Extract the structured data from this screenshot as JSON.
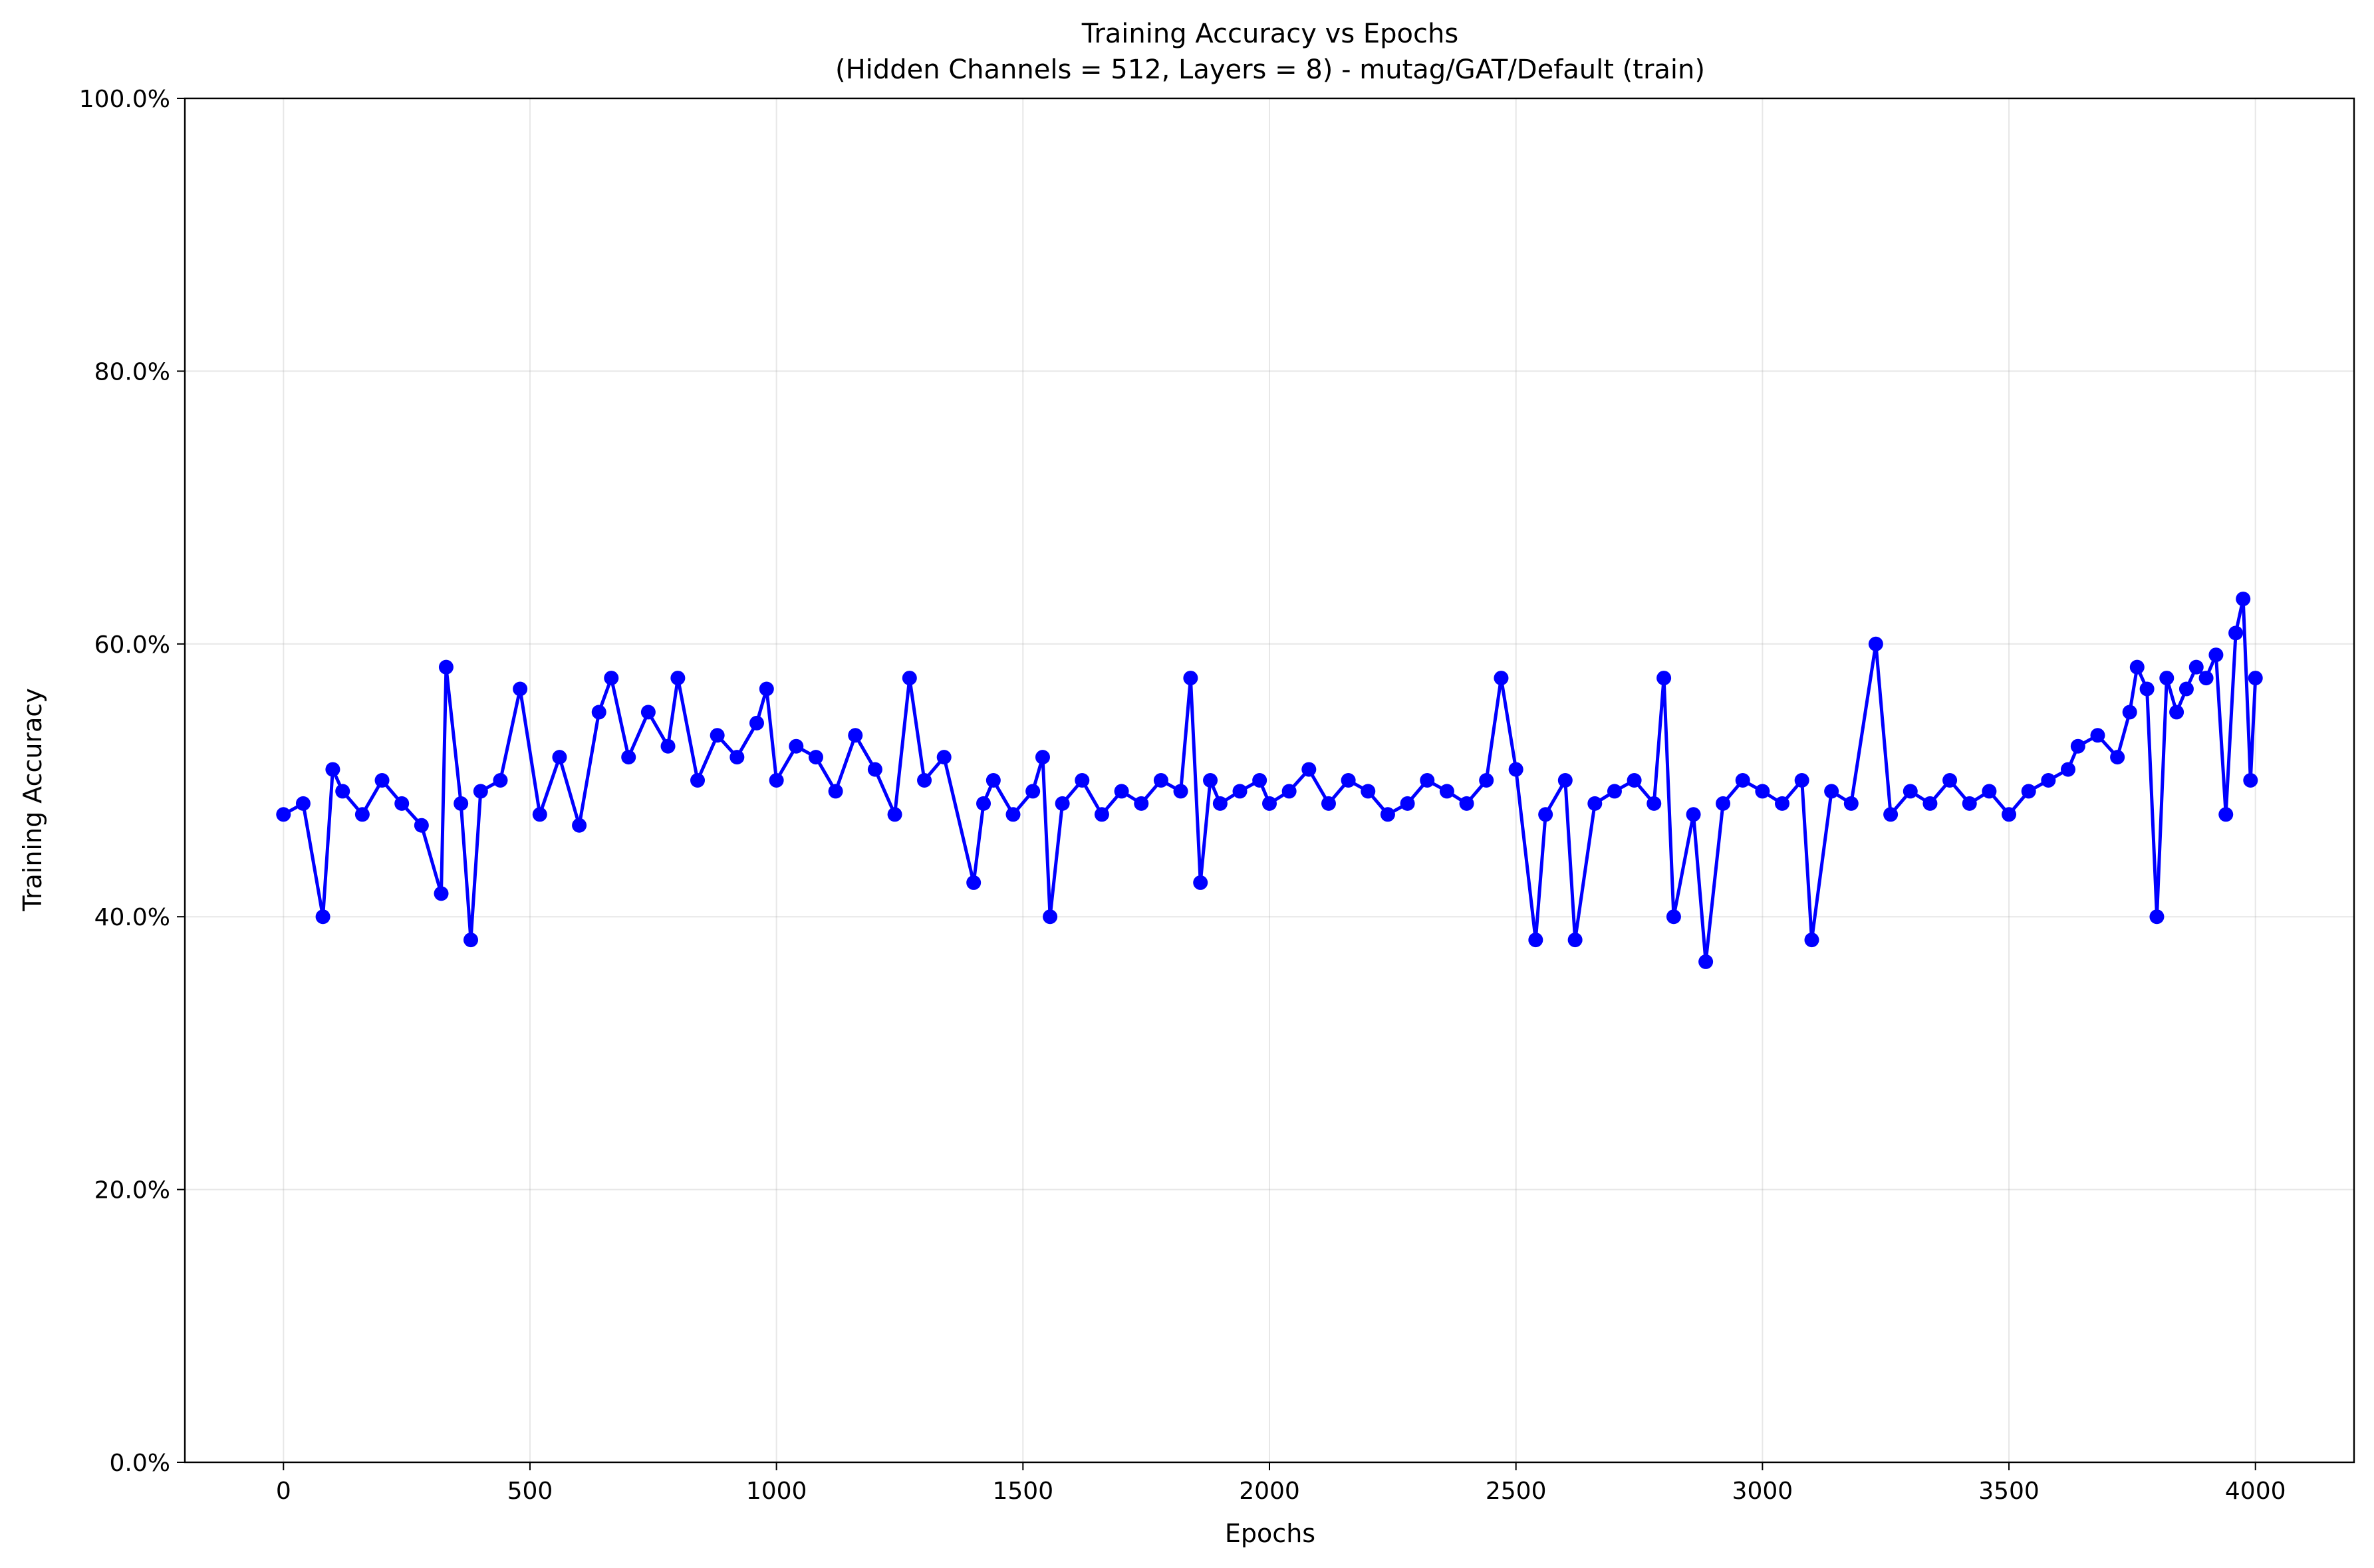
{
  "chart_data": {
    "type": "line",
    "title": "Training Accuracy vs Epochs",
    "subtitle": "(Hidden Channels = 512, Layers = 8) - mutag/GAT/Default (train)",
    "xlabel": "Epochs",
    "ylabel": "Training Accuracy",
    "xlim": [
      -200,
      4200
    ],
    "ylim": [
      0,
      100
    ],
    "x_ticks": [
      0,
      500,
      1000,
      1500,
      2000,
      2500,
      3000,
      3500,
      4000
    ],
    "x_tick_labels": [
      "0",
      "500",
      "1000",
      "1500",
      "2000",
      "2500",
      "3000",
      "3500",
      "4000"
    ],
    "y_ticks": [
      0,
      20,
      40,
      60,
      80,
      100
    ],
    "y_tick_labels": [
      "0.0%",
      "20.0%",
      "40.0%",
      "60.0%",
      "80.0%",
      "100.0%"
    ],
    "grid": true,
    "series_color": "#0000ff",
    "marker": "circle",
    "series": [
      {
        "x": [
          0,
          40,
          80,
          100,
          120,
          160,
          200,
          240,
          280,
          320,
          330,
          360,
          380,
          400,
          440,
          480,
          520,
          560,
          600,
          640,
          665,
          700,
          740,
          780,
          800,
          840,
          880,
          920,
          960,
          980,
          1000,
          1040,
          1080,
          1120,
          1160,
          1200,
          1240,
          1270,
          1300,
          1340,
          1400,
          1420,
          1440,
          1480,
          1520,
          1540,
          1555,
          1580,
          1620,
          1660,
          1700,
          1740,
          1780,
          1820,
          1840,
          1860,
          1880,
          1900,
          1940,
          1980,
          2000,
          2040,
          2080,
          2120,
          2160,
          2200,
          2240,
          2280,
          2320,
          2360,
          2400,
          2440,
          2470,
          2500,
          2540,
          2560,
          2600,
          2620,
          2660,
          2700,
          2740,
          2780,
          2800,
          2820,
          2860,
          2885,
          2920,
          2960,
          3000,
          3040,
          3080,
          3100,
          3140,
          3180,
          3230,
          3260,
          3300,
          3340,
          3380,
          3420,
          3460,
          3500,
          3540,
          3580,
          3620,
          3640,
          3680,
          3720,
          3745,
          3760,
          3780,
          3800,
          3820,
          3840,
          3860,
          3880,
          3900,
          3920,
          3940,
          3960,
          3975,
          3990,
          4000
        ],
        "y": [
          47.5,
          48.3,
          40.0,
          50.8,
          49.2,
          47.5,
          50.0,
          48.3,
          46.7,
          41.7,
          58.3,
          48.3,
          38.3,
          49.2,
          50.0,
          56.7,
          47.5,
          51.7,
          46.7,
          55.0,
          57.5,
          51.7,
          55.0,
          52.5,
          57.5,
          50.0,
          53.3,
          51.7,
          54.2,
          56.7,
          50.0,
          52.5,
          51.7,
          49.2,
          53.3,
          50.8,
          47.5,
          57.5,
          50.0,
          51.7,
          42.5,
          48.3,
          50.0,
          47.5,
          49.2,
          51.7,
          40.0,
          48.3,
          50.0,
          47.5,
          49.2,
          48.3,
          50.0,
          49.2,
          57.5,
          42.5,
          50.0,
          48.3,
          49.2,
          50.0,
          48.3,
          49.2,
          50.8,
          48.3,
          50.0,
          49.2,
          47.5,
          48.3,
          50.0,
          49.2,
          48.3,
          50.0,
          57.5,
          50.8,
          38.3,
          47.5,
          50.0,
          38.3,
          48.3,
          49.2,
          50.0,
          48.3,
          57.5,
          40.0,
          47.5,
          36.7,
          48.3,
          50.0,
          49.2,
          48.3,
          50.0,
          38.3,
          49.2,
          48.3,
          60.0,
          47.5,
          49.2,
          48.3,
          50.0,
          48.3,
          49.2,
          47.5,
          49.2,
          50.0,
          50.8,
          52.5,
          53.3,
          51.7,
          55.0,
          58.3,
          56.7,
          40.0,
          57.5,
          55.0,
          56.7,
          58.3,
          57.5,
          59.2,
          47.5,
          60.8,
          63.3,
          50.0,
          57.5
        ]
      }
    ]
  }
}
